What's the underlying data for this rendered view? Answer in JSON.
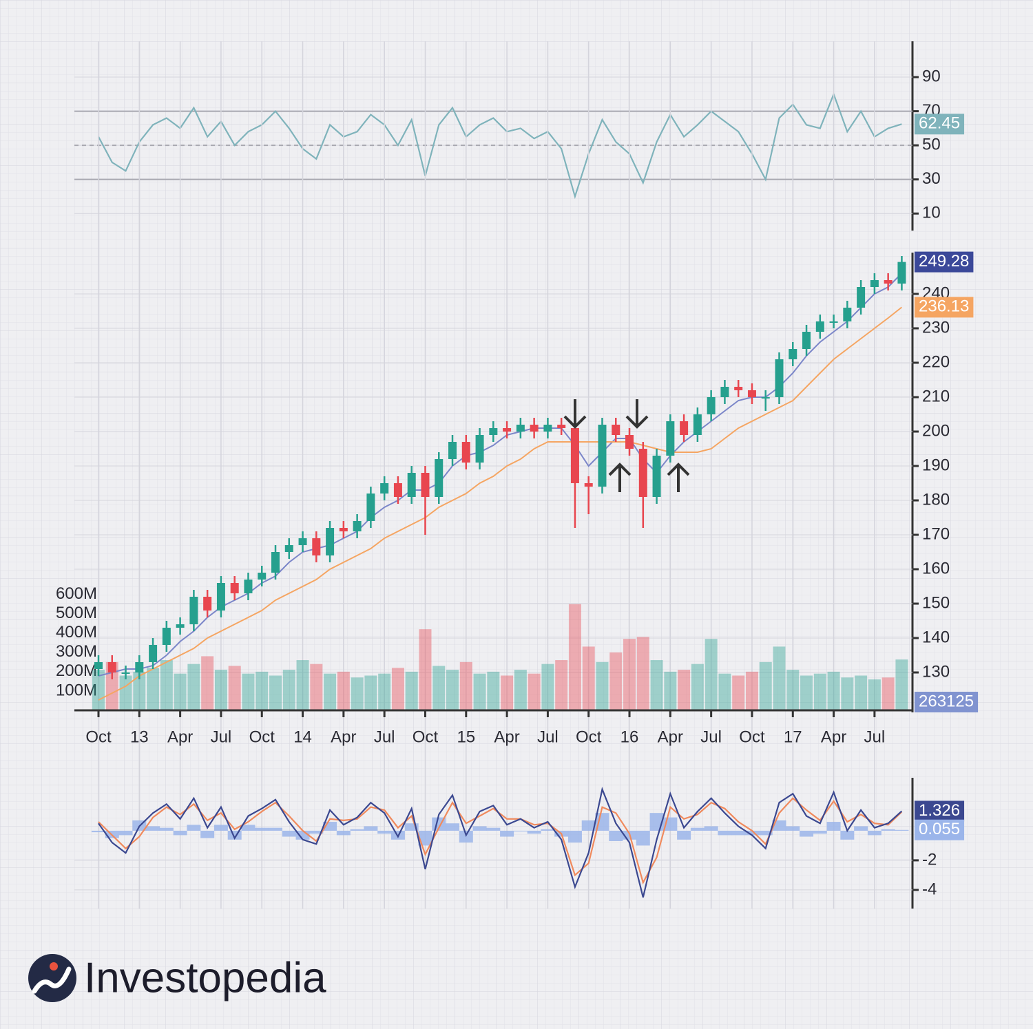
{
  "chart_data": [
    {
      "type": "line",
      "values": [
        55,
        40,
        35,
        52,
        62,
        66,
        60,
        72,
        55,
        64,
        50,
        58,
        62,
        70,
        60,
        48,
        42,
        62,
        55,
        58,
        68,
        62,
        50,
        65,
        32,
        62,
        72,
        55,
        62,
        66,
        58,
        60,
        54,
        58,
        48,
        20,
        45,
        65,
        52,
        45,
        28,
        52,
        68,
        55,
        62,
        70,
        64,
        58,
        45,
        30,
        66,
        74,
        62,
        60,
        80,
        58,
        70,
        55,
        60,
        62.45
      ],
      "color": "#7fb3bb",
      "ylim": [
        0,
        111
      ],
      "yticks": [
        10,
        30,
        50,
        70,
        90
      ],
      "reference_lines": [
        30,
        50,
        70
      ]
    },
    {
      "type": "candlestick",
      "categories": [
        "Oct",
        null,
        null,
        "13",
        null,
        null,
        "Apr",
        null,
        null,
        "Jul",
        null,
        null,
        "Oct",
        null,
        null,
        "14",
        null,
        null,
        "Apr",
        null,
        null,
        "Jul",
        null,
        null,
        "Oct",
        null,
        null,
        "15",
        null,
        null,
        "Apr",
        null,
        null,
        "Jul",
        null,
        null,
        "Oct",
        null,
        null,
        "16",
        null,
        null,
        "Apr",
        null,
        null,
        "Jul",
        null,
        null,
        "Oct",
        null,
        null,
        "17",
        null,
        null,
        "Apr",
        null,
        null,
        "Jul",
        null,
        null
      ],
      "open": [
        131,
        133,
        130,
        130,
        133,
        138,
        143,
        144,
        152,
        148,
        156,
        153,
        157,
        159,
        165,
        167,
        169,
        164,
        172,
        171,
        174,
        182,
        185,
        181,
        188,
        181,
        192,
        197,
        191,
        199,
        201,
        200,
        202,
        200,
        202,
        201,
        185,
        184,
        202,
        199,
        195,
        181,
        193,
        203,
        199,
        205,
        210,
        213,
        212,
        210,
        210,
        221,
        224,
        229,
        232,
        232,
        236,
        242,
        244,
        243
      ],
      "high": [
        135,
        135,
        132,
        135,
        140,
        145,
        146,
        154,
        154,
        158,
        158,
        159,
        161,
        167,
        169,
        171,
        171,
        174,
        174,
        176,
        184,
        187,
        187,
        190,
        190,
        194,
        199,
        199,
        201,
        203,
        203,
        204,
        204,
        204,
        204,
        203,
        187,
        204,
        204,
        201,
        197,
        195,
        205,
        205,
        207,
        212,
        215,
        215,
        214,
        212,
        223,
        226,
        231,
        234,
        234,
        238,
        244,
        246,
        246,
        251
      ],
      "low": [
        129,
        128,
        128,
        128,
        131,
        136,
        141,
        142,
        146,
        146,
        151,
        151,
        155,
        157,
        163,
        165,
        162,
        162,
        169,
        169,
        172,
        180,
        179,
        179,
        170,
        179,
        190,
        189,
        189,
        197,
        198,
        198,
        198,
        198,
        199,
        172,
        176,
        182,
        197,
        193,
        172,
        179,
        191,
        197,
        197,
        203,
        208,
        210,
        208,
        206,
        208,
        219,
        222,
        227,
        230,
        230,
        234,
        240,
        241,
        241
      ],
      "close": [
        133,
        130,
        130,
        133,
        138,
        143,
        144,
        152,
        148,
        156,
        153,
        157,
        159,
        165,
        167,
        169,
        164,
        172,
        171,
        174,
        182,
        185,
        181,
        188,
        181,
        192,
        197,
        191,
        199,
        201,
        200,
        202,
        200,
        202,
        201,
        185,
        184,
        202,
        199,
        195,
        181,
        193,
        203,
        199,
        205,
        210,
        213,
        212,
        210,
        210,
        221,
        224,
        229,
        232,
        232,
        236,
        242,
        244,
        243,
        249.28
      ],
      "up_color": "#26a08e",
      "down_color": "#e8464f",
      "ylim": [
        119,
        252
      ],
      "yticks": [
        130,
        140,
        150,
        160,
        170,
        180,
        190,
        200,
        210,
        220,
        230,
        240
      ],
      "overlays": [
        {
          "color": "#7b86c9",
          "values": [
            129,
            130,
            131,
            131,
            132,
            135,
            139,
            142,
            146,
            149,
            151,
            153,
            156,
            158,
            162,
            165,
            166,
            167,
            169,
            171,
            175,
            178,
            180,
            183,
            183,
            185,
            190,
            193,
            194,
            196,
            199,
            200,
            201,
            201,
            201,
            196,
            190,
            194,
            198,
            198,
            192,
            188,
            193,
            197,
            200,
            203,
            206,
            209,
            210,
            210,
            213,
            217,
            222,
            226,
            229,
            232,
            236,
            240,
            242,
            246
          ]
        },
        {
          "color": "#f5a562",
          "values": [
            122,
            124,
            126,
            129,
            131,
            133,
            135,
            137,
            140,
            142,
            144,
            146,
            148,
            151,
            153,
            155,
            157,
            160,
            162,
            164,
            166,
            169,
            171,
            173,
            175,
            178,
            180,
            182,
            185,
            187,
            190,
            192,
            195,
            197,
            197,
            197,
            197,
            197,
            197,
            197,
            196,
            195,
            194,
            194,
            194,
            195,
            198,
            201,
            203,
            205,
            207,
            209,
            213,
            217,
            221,
            224,
            227,
            230,
            233,
            236.13
          ]
        }
      ],
      "volume": {
        "values": [
          210000,
          250000,
          180000,
          200000,
          220000,
          260000,
          190000,
          240000,
          280000,
          210000,
          230000,
          190000,
          200000,
          180000,
          210000,
          260000,
          240000,
          190000,
          200000,
          170000,
          180000,
          190000,
          220000,
          200000,
          420000,
          230000,
          210000,
          250000,
          190000,
          200000,
          180000,
          210000,
          190000,
          240000,
          260000,
          550000,
          330000,
          250000,
          300000,
          370000,
          380000,
          260000,
          200000,
          210000,
          240000,
          370000,
          190000,
          180000,
          200000,
          250000,
          330000,
          210000,
          180000,
          190000,
          200000,
          170000,
          180000,
          160000,
          170000,
          263125
        ],
        "ylim": [
          0,
          2370000
        ],
        "yticks": [
          {
            "value": 100000,
            "label": "100M"
          },
          {
            "value": 200000,
            "label": "200M"
          },
          {
            "value": 300000,
            "label": "300M"
          },
          {
            "value": 400000,
            "label": "400M"
          },
          {
            "value": 500000,
            "label": "500M"
          },
          {
            "value": 600000,
            "label": "600M"
          }
        ]
      }
    },
    {
      "type": "macd",
      "ylim": [
        -5.26,
        3.58
      ],
      "yticks": [
        -4,
        -2
      ],
      "series": [
        {
          "style": "line",
          "color": "#3b4890",
          "values": [
            0.5,
            -0.8,
            -1.5,
            0.3,
            1.2,
            1.8,
            0.8,
            2.2,
            0.2,
            1.6,
            -0.5,
            1.0,
            1.5,
            2.1,
            0.6,
            -0.6,
            -0.9,
            1.4,
            0.4,
            0.9,
            1.9,
            1.2,
            -0.4,
            1.5,
            -2.6,
            1.1,
            2.4,
            -0.3,
            1.3,
            1.7,
            0.4,
            0.8,
            0.2,
            0.6,
            -0.6,
            -3.8,
            -1.5,
            2.8,
            0.5,
            -0.8,
            -4.5,
            -0.6,
            2.5,
            0.2,
            1.3,
            2.2,
            1.2,
            0.3,
            -0.3,
            -1.2,
            1.9,
            2.5,
            1.0,
            0.5,
            2.6,
            0.0,
            1.4,
            0.2,
            0.5,
            1.326
          ]
        },
        {
          "style": "line",
          "color": "#f08a5d",
          "values": [
            0.6,
            -0.3,
            -1.2,
            -0.4,
            0.9,
            1.6,
            1.1,
            1.8,
            0.7,
            1.2,
            0.1,
            0.6,
            1.3,
            1.9,
            1.0,
            0.0,
            -0.7,
            0.8,
            0.7,
            0.8,
            1.6,
            1.4,
            0.2,
            1.0,
            -1.6,
            0.2,
            1.9,
            0.5,
            1.0,
            1.5,
            0.8,
            0.8,
            0.4,
            0.5,
            -0.2,
            -3.0,
            -2.2,
            1.6,
            1.2,
            -0.2,
            -3.5,
            -1.8,
            1.6,
            0.8,
            1.1,
            1.9,
            1.5,
            0.6,
            0.0,
            -0.9,
            1.2,
            2.2,
            1.4,
            0.7,
            2.0,
            0.6,
            1.1,
            0.5,
            0.4,
            1.271
          ]
        },
        {
          "style": "histogram",
          "color": "#9bb5ea",
          "values": [
            -0.1,
            -0.5,
            -0.3,
            0.7,
            0.3,
            0.2,
            -0.3,
            0.4,
            -0.5,
            0.4,
            -0.6,
            0.4,
            0.2,
            0.2,
            -0.4,
            -0.6,
            -0.2,
            0.6,
            -0.3,
            0.1,
            0.3,
            -0.2,
            -0.6,
            0.5,
            -1.0,
            0.9,
            0.5,
            -0.8,
            0.3,
            0.2,
            -0.4,
            0.0,
            -0.2,
            0.1,
            -0.4,
            -0.8,
            0.7,
            1.2,
            -0.7,
            -0.6,
            -1.0,
            1.2,
            0.9,
            -0.6,
            0.2,
            0.3,
            -0.3,
            -0.3,
            -0.3,
            -0.3,
            0.7,
            0.3,
            -0.4,
            -0.2,
            0.6,
            -0.6,
            0.3,
            -0.3,
            0.1,
            0.055
          ]
        }
      ]
    }
  ],
  "logo": "Investopedia"
}
